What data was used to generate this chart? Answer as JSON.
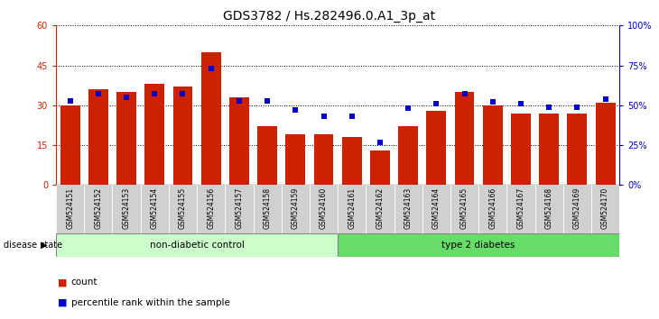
{
  "title": "GDS3782 / Hs.282496.0.A1_3p_at",
  "samples": [
    "GSM524151",
    "GSM524152",
    "GSM524153",
    "GSM524154",
    "GSM524155",
    "GSM524156",
    "GSM524157",
    "GSM524158",
    "GSM524159",
    "GSM524160",
    "GSM524161",
    "GSM524162",
    "GSM524163",
    "GSM524164",
    "GSM524165",
    "GSM524166",
    "GSM524167",
    "GSM524168",
    "GSM524169",
    "GSM524170"
  ],
  "counts": [
    30,
    36,
    35,
    38,
    37,
    50,
    33,
    22,
    19,
    19,
    18,
    13,
    22,
    28,
    35,
    30,
    27,
    27,
    27,
    31
  ],
  "percentiles": [
    53,
    57,
    55,
    57,
    57,
    73,
    53,
    53,
    47,
    43,
    43,
    27,
    48,
    51,
    57,
    52,
    51,
    49,
    49,
    54
  ],
  "group1_label": "non-diabetic control",
  "group2_label": "type 2 diabetes",
  "group1_count": 10,
  "group2_count": 10,
  "bar_color": "#cc2200",
  "dot_color": "#0000cc",
  "left_ylim": [
    0,
    60
  ],
  "right_ylim": [
    0,
    100
  ],
  "left_yticks": [
    0,
    15,
    30,
    45,
    60
  ],
  "left_yticklabels": [
    "0",
    "15",
    "30",
    "45",
    "60"
  ],
  "right_yticks": [
    0,
    25,
    50,
    75,
    100
  ],
  "right_yticklabels": [
    "0%",
    "25%",
    "50%",
    "75%",
    "100%"
  ],
  "group1_color": "#ccffcc",
  "group2_color": "#66dd66",
  "bg_color": "#ffffff",
  "title_fontsize": 10,
  "tick_fontsize": 7,
  "label_fontsize": 7.5,
  "legend_fontsize": 7.5
}
